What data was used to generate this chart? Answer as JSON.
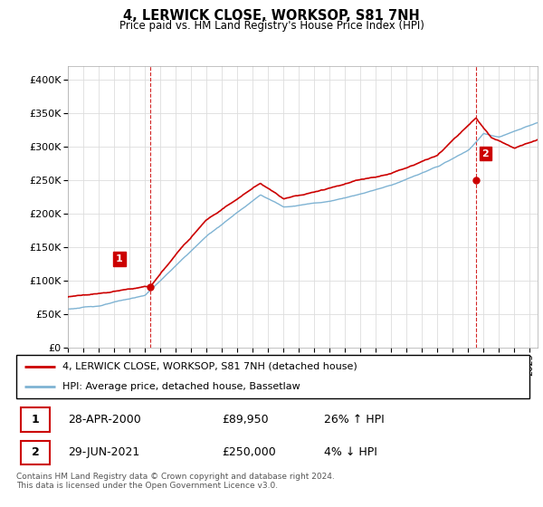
{
  "title": "4, LERWICK CLOSE, WORKSOP, S81 7NH",
  "subtitle": "Price paid vs. HM Land Registry's House Price Index (HPI)",
  "yticks": [
    0,
    50000,
    100000,
    150000,
    200000,
    250000,
    300000,
    350000,
    400000
  ],
  "legend_line1": "4, LERWICK CLOSE, WORKSOP, S81 7NH (detached house)",
  "legend_line2": "HPI: Average price, detached house, Bassetlaw",
  "transaction1_date": "28-APR-2000",
  "transaction1_price": "£89,950",
  "transaction1_hpi": "26% ↑ HPI",
  "transaction2_date": "29-JUN-2021",
  "transaction2_price": "£250,000",
  "transaction2_hpi": "4% ↓ HPI",
  "footer": "Contains HM Land Registry data © Crown copyright and database right 2024.\nThis data is licensed under the Open Government Licence v3.0.",
  "red_color": "#cc0000",
  "blue_color": "#7fb3d3",
  "marker1_year": 2000.32,
  "marker1_price": 89950,
  "marker2_year": 2021.49,
  "marker2_price": 250000,
  "vline1_year": 2000.32,
  "vline2_year": 2021.49,
  "xmin": 1995.0,
  "xmax": 2025.5,
  "ymin": 0,
  "ymax": 420000
}
